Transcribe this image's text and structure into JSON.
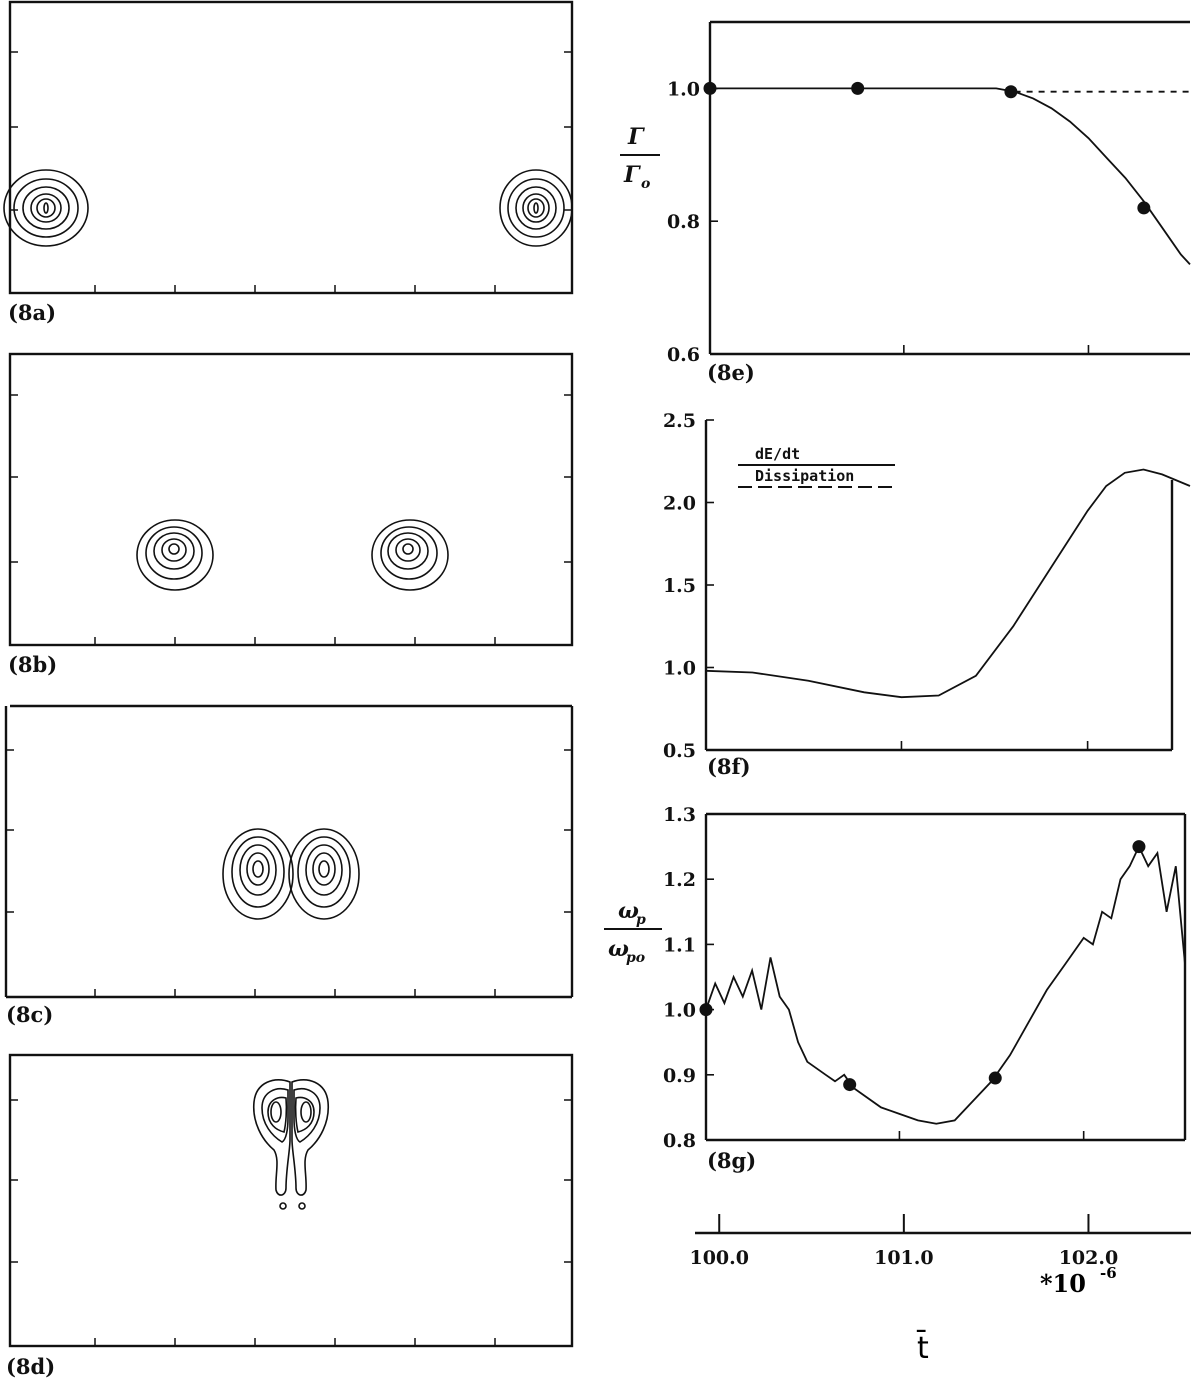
{
  "panels": {
    "a": "(8a)",
    "b": "(8b)",
    "c": "(8c)",
    "d": "(8d)"
  },
  "time_axis": {
    "label": "t̄",
    "ticks": [
      "100.0",
      "101.0",
      "102.0"
    ],
    "scale": "*10",
    "scale_exp": "-6"
  },
  "chart_data": [
    {
      "type": "line",
      "panel_label": "(8e)",
      "ylabel_num": "Γ",
      "ylabel_den": "Γ",
      "ylabel_den_sub": "o",
      "xlim": [
        99.95,
        102.55
      ],
      "ylim": [
        0.6,
        1.1
      ],
      "yticks": [
        "1.0",
        "0.8",
        "0.6"
      ],
      "ytick_values": [
        1.0,
        0.8,
        0.6
      ],
      "series": [
        {
          "style": "solid",
          "x": [
            99.95,
            100.5,
            101.0,
            101.5,
            101.6,
            101.7,
            101.8,
            101.9,
            102.0,
            102.1,
            102.2,
            102.3,
            102.4,
            102.5,
            102.55
          ],
          "y": [
            1.0,
            1.0,
            1.0,
            1.0,
            0.995,
            0.985,
            0.97,
            0.95,
            0.925,
            0.895,
            0.865,
            0.83,
            0.79,
            0.75,
            0.735
          ]
        },
        {
          "style": "dashed",
          "x": [
            101.6,
            102.55
          ],
          "y": [
            0.995,
            0.995
          ]
        }
      ],
      "markers": {
        "x": [
          99.95,
          100.75,
          101.58,
          102.3
        ],
        "y": [
          1.0,
          1.0,
          0.995,
          0.82
        ]
      }
    },
    {
      "type": "line",
      "panel_label": "(8f)",
      "xlim": [
        99.95,
        102.55
      ],
      "ylim": [
        0.5,
        2.5
      ],
      "yticks": [
        "2.5",
        "2.0",
        "1.5",
        "1.0",
        "0.5"
      ],
      "ytick_values": [
        2.5,
        2.0,
        1.5,
        1.0,
        0.5
      ],
      "legend": [
        "dE/dt",
        "Dissipation"
      ],
      "series": [
        {
          "name": "dE/dt",
          "x": [
            99.95,
            100.2,
            100.5,
            100.8,
            101.0,
            101.2,
            101.4,
            101.6,
            101.8,
            102.0,
            102.1,
            102.2,
            102.3,
            102.4,
            102.55
          ],
          "y": [
            0.98,
            0.97,
            0.92,
            0.85,
            0.82,
            0.83,
            0.95,
            1.25,
            1.6,
            1.95,
            2.1,
            2.18,
            2.2,
            2.17,
            2.1
          ]
        }
      ]
    },
    {
      "type": "line",
      "panel_label": "(8g)",
      "ylabel_num": "ω",
      "ylabel_num_sub": "p",
      "ylabel_den": "ω",
      "ylabel_den_sub": "po",
      "xlim": [
        99.95,
        102.55
      ],
      "ylim": [
        0.8,
        1.3
      ],
      "yticks": [
        "1.3",
        "1.2",
        "1.1",
        "1.0",
        "0.9",
        "0.8"
      ],
      "ytick_values": [
        1.3,
        1.2,
        1.1,
        1.0,
        0.9,
        0.8
      ],
      "series": [
        {
          "x": [
            99.95,
            100.0,
            100.05,
            100.1,
            100.15,
            100.2,
            100.25,
            100.3,
            100.35,
            100.4,
            100.45,
            100.5,
            100.55,
            100.6,
            100.65,
            100.7,
            100.75,
            100.8,
            100.9,
            101.0,
            101.1,
            101.2,
            101.3,
            101.4,
            101.5,
            101.6,
            101.7,
            101.8,
            101.9,
            102.0,
            102.05,
            102.1,
            102.15,
            102.2,
            102.25,
            102.3,
            102.35,
            102.4,
            102.45,
            102.5,
            102.55
          ],
          "y": [
            1.0,
            1.04,
            1.01,
            1.05,
            1.02,
            1.06,
            1.0,
            1.08,
            1.02,
            1.0,
            0.95,
            0.92,
            0.91,
            0.9,
            0.89,
            0.9,
            0.88,
            0.87,
            0.85,
            0.84,
            0.83,
            0.825,
            0.83,
            0.86,
            0.89,
            0.93,
            0.98,
            1.03,
            1.07,
            1.11,
            1.1,
            1.15,
            1.14,
            1.2,
            1.22,
            1.25,
            1.22,
            1.24,
            1.15,
            1.22,
            1.07
          ]
        }
      ],
      "markers": {
        "x": [
          99.95,
          100.73,
          101.52,
          102.3
        ],
        "y": [
          1.0,
          0.885,
          0.895,
          1.25
        ]
      }
    }
  ]
}
